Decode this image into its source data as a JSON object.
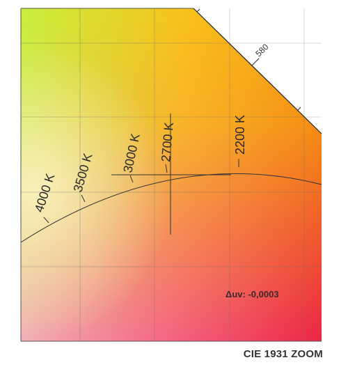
{
  "chart_data": {
    "type": "scatter",
    "title": "CIE 1931 ZOOM",
    "colors": {
      "top_left": "#c8f03c",
      "top_right": "#f7a80a",
      "bottom_left": "#f0a0b0",
      "bottom_right": "#ee2a50",
      "locus": "#333333",
      "grid": "#777777"
    },
    "spectral_locus_label": "580",
    "cct_ticks": [
      {
        "label": "4000 K",
        "angle": -70
      },
      {
        "label": "3500 K",
        "angle": -72
      },
      {
        "label": "3000 K",
        "angle": -78
      },
      {
        "label": "2700 K",
        "angle": -85
      },
      {
        "label": "2200 K",
        "angle": -90
      }
    ],
    "measurement": {
      "duv_label": "Δuv: -0,0003"
    }
  }
}
